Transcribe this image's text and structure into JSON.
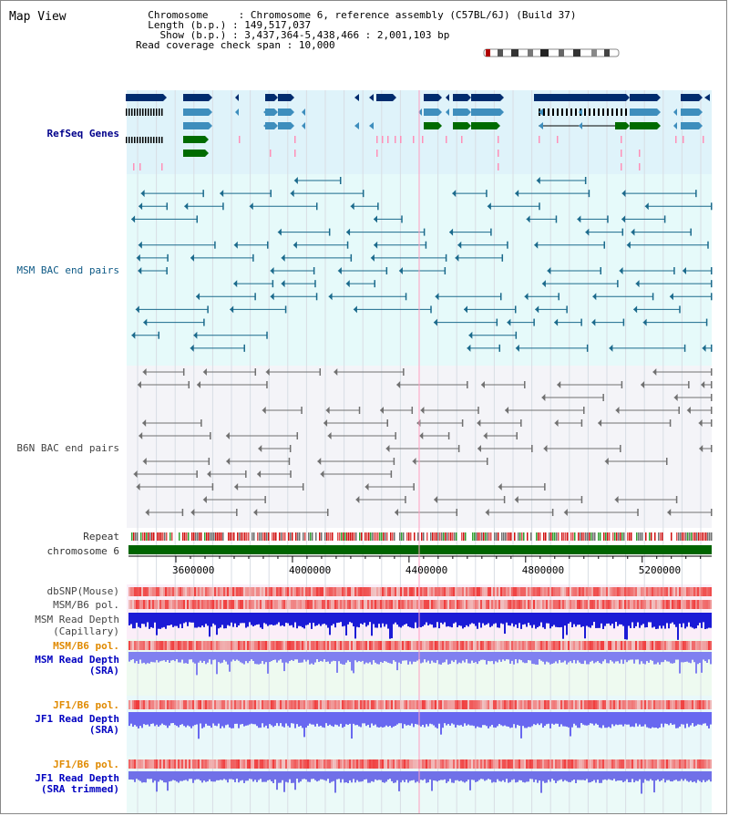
{
  "window": {
    "title": "Map View"
  },
  "header": {
    "chromosome_key": "Chromosome",
    "chromosome_val": "Chromosome 6, reference assembly (C57BL/6J) (Build 37)",
    "length_key": "Length (b.p.)",
    "length_val": "149,517,037",
    "show_key": "Show (b.p.)",
    "show_val": "3,437,364-5,438,466 : 2,001,103 bp",
    "span_key": "Read coverage check span",
    "span_val": "10,000"
  },
  "tracks": {
    "refseq": "RefSeq Genes",
    "msm_bac": "MSM BAC end pairs",
    "b6n_bac": "B6N BAC end pairs",
    "repeat": "Repeat",
    "chromosome": "chromosome 6",
    "dbsnp": "dbSNP(Mouse)",
    "msm_b6_pol": "MSM/B6 pol.",
    "msm_depth_cap_1": "MSM Read Depth",
    "msm_depth_cap_2": "(Capillary)",
    "msm_b6_pol_sra": "MSM/B6 pol.",
    "msm_depth_sra_1": "MSM Read Depth",
    "msm_depth_sra_2": "(SRA)",
    "jf1_b6_pol_1": "JF1/B6 pol.",
    "jf1_depth_sra_1": "JF1 Read Depth",
    "jf1_depth_sra_2": "(SRA)",
    "jf1_b6_pol_2": "JF1/B6 pol.",
    "jf1_depth_trim_1": "JF1 Read Depth",
    "jf1_depth_trim_2": "(SRA trimmed)"
  },
  "axis": {
    "start_bp": 3437364,
    "end_bp": 5438466,
    "ticks": [
      3600000,
      4000000,
      4400000,
      4800000,
      5200000
    ],
    "tick_labels": [
      "3600000",
      "4000000",
      "4400000",
      "4800000",
      "5200000"
    ]
  },
  "colors": {
    "gene_dark": "#002c6e",
    "gene_mid": "#3e8ebd",
    "gene_green": "#006b00",
    "bac_teal": "#1b6a8c",
    "bac_gray": "#707070",
    "chrom_green": "#006400",
    "depth_blue": "#1b1bd6",
    "depth_light": "#8080f0",
    "pol_red": "#f03030"
  }
}
